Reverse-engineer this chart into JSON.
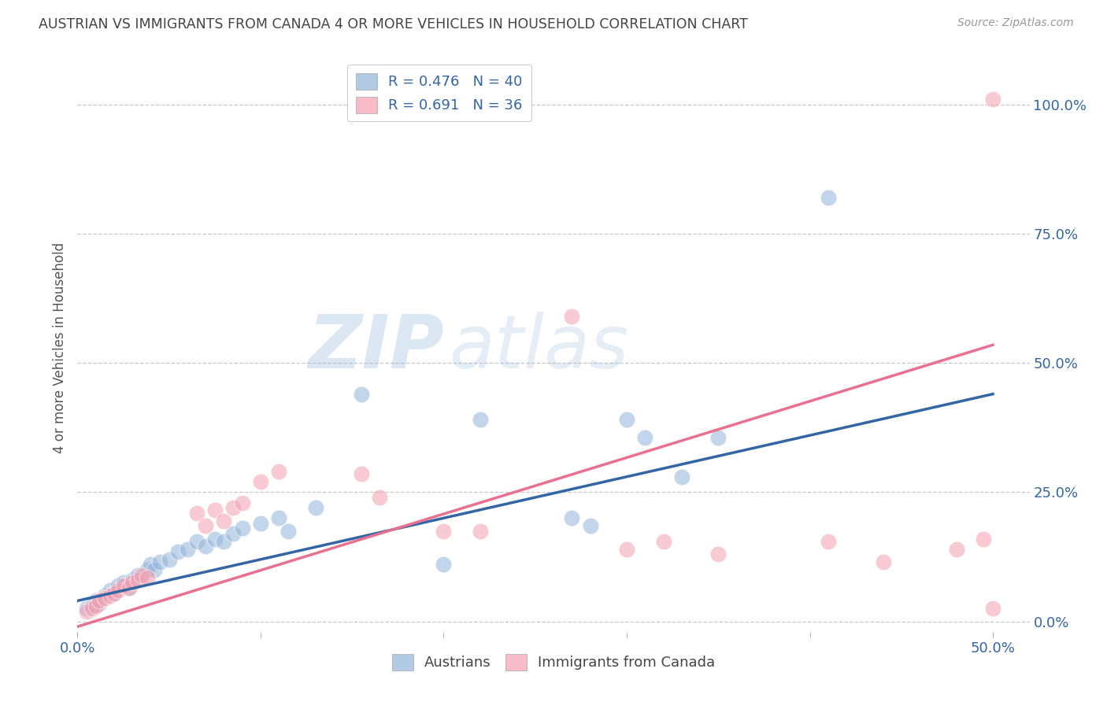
{
  "title": "AUSTRIAN VS IMMIGRANTS FROM CANADA 4 OR MORE VEHICLES IN HOUSEHOLD CORRELATION CHART",
  "source": "Source: ZipAtlas.com",
  "ylabel": "4 or more Vehicles in Household",
  "xlim": [
    0.0,
    0.52
  ],
  "ylim": [
    -0.02,
    1.08
  ],
  "ytick_labels": [
    "0.0%",
    "25.0%",
    "50.0%",
    "75.0%",
    "100.0%"
  ],
  "ytick_positions": [
    0.0,
    0.25,
    0.5,
    0.75,
    1.0
  ],
  "xtick_labels": [
    "0.0%",
    "50.0%"
  ],
  "xtick_positions": [
    0.0,
    0.5
  ],
  "xtick_minor": [
    0.1,
    0.2,
    0.3,
    0.4
  ],
  "legend_blue_label": "R = 0.476   N = 40",
  "legend_pink_label": "R = 0.691   N = 36",
  "bottom_legend_blue": "Austrians",
  "bottom_legend_pink": "Immigrants from Canada",
  "blue_color": "#92b4d9",
  "pink_color": "#f4a0b0",
  "blue_line_color": "#3465a4",
  "pink_line_color": "#e87090",
  "blue_scatter": [
    [
      0.005,
      0.025
    ],
    [
      0.008,
      0.03
    ],
    [
      0.01,
      0.04
    ],
    [
      0.012,
      0.035
    ],
    [
      0.015,
      0.05
    ],
    [
      0.018,
      0.06
    ],
    [
      0.02,
      0.055
    ],
    [
      0.022,
      0.07
    ],
    [
      0.025,
      0.075
    ],
    [
      0.028,
      0.065
    ],
    [
      0.03,
      0.08
    ],
    [
      0.033,
      0.09
    ],
    [
      0.035,
      0.085
    ],
    [
      0.038,
      0.1
    ],
    [
      0.04,
      0.11
    ],
    [
      0.042,
      0.1
    ],
    [
      0.045,
      0.115
    ],
    [
      0.05,
      0.12
    ],
    [
      0.055,
      0.135
    ],
    [
      0.06,
      0.14
    ],
    [
      0.065,
      0.155
    ],
    [
      0.07,
      0.145
    ],
    [
      0.075,
      0.16
    ],
    [
      0.08,
      0.155
    ],
    [
      0.085,
      0.17
    ],
    [
      0.09,
      0.18
    ],
    [
      0.1,
      0.19
    ],
    [
      0.11,
      0.2
    ],
    [
      0.115,
      0.175
    ],
    [
      0.13,
      0.22
    ],
    [
      0.155,
      0.44
    ],
    [
      0.2,
      0.11
    ],
    [
      0.22,
      0.39
    ],
    [
      0.27,
      0.2
    ],
    [
      0.28,
      0.185
    ],
    [
      0.3,
      0.39
    ],
    [
      0.31,
      0.355
    ],
    [
      0.33,
      0.28
    ],
    [
      0.35,
      0.355
    ],
    [
      0.41,
      0.82
    ]
  ],
  "pink_scatter": [
    [
      0.005,
      0.02
    ],
    [
      0.008,
      0.025
    ],
    [
      0.01,
      0.03
    ],
    [
      0.012,
      0.04
    ],
    [
      0.015,
      0.045
    ],
    [
      0.018,
      0.05
    ],
    [
      0.02,
      0.055
    ],
    [
      0.022,
      0.06
    ],
    [
      0.025,
      0.07
    ],
    [
      0.028,
      0.065
    ],
    [
      0.03,
      0.075
    ],
    [
      0.033,
      0.08
    ],
    [
      0.035,
      0.09
    ],
    [
      0.038,
      0.085
    ],
    [
      0.065,
      0.21
    ],
    [
      0.07,
      0.185
    ],
    [
      0.075,
      0.215
    ],
    [
      0.08,
      0.195
    ],
    [
      0.085,
      0.22
    ],
    [
      0.09,
      0.23
    ],
    [
      0.1,
      0.27
    ],
    [
      0.11,
      0.29
    ],
    [
      0.155,
      0.285
    ],
    [
      0.165,
      0.24
    ],
    [
      0.2,
      0.175
    ],
    [
      0.22,
      0.175
    ],
    [
      0.27,
      0.59
    ],
    [
      0.3,
      0.14
    ],
    [
      0.32,
      0.155
    ],
    [
      0.35,
      0.13
    ],
    [
      0.41,
      0.155
    ],
    [
      0.44,
      0.115
    ],
    [
      0.48,
      0.14
    ],
    [
      0.495,
      0.16
    ],
    [
      0.5,
      1.01
    ],
    [
      0.5,
      0.025
    ]
  ],
  "blue_trendline_x": [
    0.0,
    0.5
  ],
  "blue_trendline_y": [
    0.04,
    0.44
  ],
  "pink_trendline_x": [
    0.0,
    0.5
  ],
  "pink_trendline_y": [
    -0.01,
    0.535
  ],
  "watermark_zip": "ZIP",
  "watermark_atlas": "atlas",
  "background_color": "#ffffff",
  "grid_color": "#c8c8c8",
  "title_color": "#444444",
  "axis_label_color": "#3465a4",
  "ylabel_color": "#555555"
}
